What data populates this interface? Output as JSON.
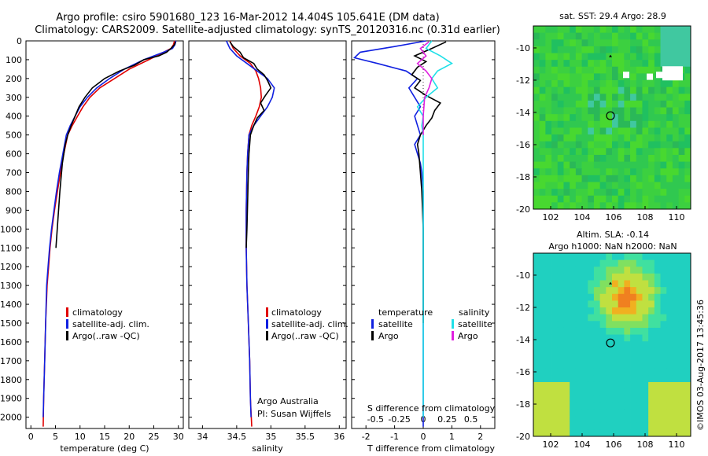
{
  "header": {
    "title_line1": "Argo profile: csiro 5901680_123 16-Mar-2012 14.404S 105.641E (DM data)",
    "title_line2": "Climatology: CARS2009. Satellite-adjusted climatology: synTS_20120316.nc (0.31d earlier)"
  },
  "colors": {
    "climatology": "#e00000",
    "satellite": "#1020e0",
    "argo": "#000000",
    "sat_salinity": "#20e0e8",
    "argo_salinity": "#e020e0"
  },
  "depth_ticks": [
    "0",
    "100",
    "200",
    "300",
    "400",
    "500",
    "600",
    "700",
    "800",
    "900",
    "1000",
    "1100",
    "1200",
    "1300",
    "1400",
    "1500",
    "1600",
    "1700",
    "1800",
    "1900",
    "2000"
  ],
  "chart_data": [
    {
      "type": "line",
      "title": "",
      "xlabel": "temperature (deg C)",
      "ylabel": "",
      "xlim": [
        -1,
        31
      ],
      "ylim": [
        2060,
        0
      ],
      "xticks": [
        "0",
        "5",
        "10",
        "15",
        "20",
        "25",
        "30"
      ],
      "legend": [
        "climatology",
        "satellite-adj. clim.",
        "Argo(..raw -QC)"
      ],
      "series": [
        {
          "name": "climatology",
          "color_key": "climatology",
          "x": [
            29.2,
            29.0,
            28.5,
            27,
            24,
            20,
            17,
            14,
            12,
            10.6,
            9.5,
            8.4,
            7.5,
            6.7,
            6.0,
            5.4,
            4.8,
            4.3,
            3.9,
            3.6,
            3.3,
            3.0,
            2.8,
            2.6,
            2.5
          ],
          "y": [
            0,
            20,
            40,
            60,
            100,
            150,
            200,
            250,
            300,
            350,
            400,
            450,
            500,
            600,
            700,
            800,
            900,
            1000,
            1100,
            1200,
            1300,
            1500,
            1700,
            1900,
            2050
          ]
        },
        {
          "name": "satellite-adj. clim.",
          "color_key": "satellite",
          "x": [
            29.5,
            29.3,
            28.8,
            27,
            23,
            19,
            16,
            13.4,
            11.5,
            10.0,
            9.0,
            8.0,
            7.2,
            6.5,
            5.8,
            5.2,
            4.7,
            4.2,
            3.8,
            3.5,
            3.2,
            3.0,
            2.8,
            2.6,
            2.5
          ],
          "y": [
            0,
            20,
            40,
            60,
            100,
            150,
            200,
            250,
            300,
            350,
            400,
            450,
            500,
            600,
            700,
            800,
            900,
            1000,
            1100,
            1200,
            1300,
            1500,
            1700,
            1900,
            2000
          ]
        },
        {
          "name": "Argo(..raw -QC)",
          "color_key": "argo",
          "x": [
            29.4,
            29.2,
            28.5,
            27.6,
            26,
            23,
            21,
            18,
            15,
            12.5,
            11,
            9.8,
            9.0,
            8.2,
            7.5,
            7.0,
            6.4,
            5.9,
            5.5,
            5.1
          ],
          "y": [
            5,
            20,
            40,
            60,
            80,
            100,
            130,
            160,
            200,
            250,
            300,
            350,
            400,
            450,
            500,
            550,
            650,
            800,
            950,
            1100
          ]
        }
      ]
    },
    {
      "type": "line",
      "title": "",
      "xlabel": "salinity",
      "ylabel": "",
      "xlim": [
        33.8,
        36.1
      ],
      "ylim": [
        2060,
        0
      ],
      "xticks": [
        "34",
        "34.5",
        "35",
        "35.5",
        "36"
      ],
      "legend": [
        "climatology",
        "satellite-adj. clim.",
        "Argo(..raw -QC)"
      ],
      "annotation": [
        "Argo Australia",
        "PI: Susan Wijffels"
      ],
      "series": [
        {
          "name": "climatology",
          "color_key": "climatology",
          "x": [
            34.4,
            34.45,
            34.55,
            34.7,
            34.78,
            34.82,
            34.85,
            34.86,
            34.83,
            34.78,
            34.72,
            34.68,
            34.66,
            34.65,
            34.64,
            34.64,
            34.65,
            34.67,
            34.69,
            34.7,
            34.72
          ],
          "y": [
            0,
            40,
            80,
            120,
            160,
            200,
            250,
            300,
            350,
            400,
            450,
            500,
            600,
            700,
            900,
            1100,
            1300,
            1500,
            1700,
            1900,
            2050
          ]
        },
        {
          "name": "satellite-adj. clim.",
          "color_key": "satellite",
          "x": [
            34.35,
            34.4,
            34.5,
            34.65,
            34.8,
            34.95,
            35.05,
            35.02,
            34.95,
            34.85,
            34.75,
            34.68,
            34.66,
            34.65,
            34.64,
            34.64,
            34.65,
            34.67,
            34.69,
            34.7,
            34.71
          ],
          "y": [
            0,
            40,
            80,
            120,
            160,
            200,
            250,
            300,
            350,
            400,
            450,
            500,
            600,
            700,
            900,
            1100,
            1300,
            1500,
            1700,
            1900,
            2000
          ]
        },
        {
          "name": "Argo(..raw -QC)",
          "color_key": "argo",
          "x": [
            34.4,
            34.45,
            34.55,
            34.6,
            34.75,
            34.8,
            34.9,
            34.95,
            35.0,
            34.92,
            34.85,
            34.9,
            34.8,
            34.75,
            34.7,
            34.68,
            34.67,
            34.66,
            34.65,
            34.64
          ],
          "y": [
            5,
            30,
            60,
            90,
            120,
            150,
            180,
            210,
            250,
            290,
            330,
            370,
            410,
            450,
            500,
            600,
            700,
            850,
            1000,
            1100
          ]
        }
      ]
    },
    {
      "type": "line",
      "title": "",
      "xlabel": "T difference from climatology",
      "xlabel_top": "S difference from climatology",
      "ylabel": "",
      "xlim": [
        -2.5,
        2.5
      ],
      "ylim": [
        2060,
        0
      ],
      "xticks": [
        "-2",
        "-1",
        "0",
        "1",
        "2"
      ],
      "xticks_s": [
        "-0.5",
        "-0.25",
        "0",
        "0.25",
        "0.5"
      ],
      "legend_headers": [
        "temperature",
        "salinity"
      ],
      "legend": [
        "satellite",
        "Argo",
        "satellite",
        "Argo"
      ],
      "series": [
        {
          "name": "temperature satellite",
          "color_key": "satellite",
          "x": [
            0.1,
            -1.0,
            -2.2,
            -2.4,
            -1.6,
            -0.6,
            -0.2,
            -0.5,
            -0.3,
            -0.1,
            -0.3,
            -0.2,
            -0.1,
            -0.3,
            -0.2,
            -0.1,
            -0.05,
            0,
            0,
            0,
            0
          ],
          "y": [
            0,
            30,
            60,
            90,
            120,
            160,
            200,
            250,
            300,
            350,
            400,
            450,
            500,
            550,
            600,
            650,
            700,
            800,
            1000,
            1500,
            2050
          ]
        },
        {
          "name": "temperature Argo",
          "color_key": "argo",
          "x": [
            0.8,
            0.3,
            -0.3,
            0.1,
            -0.2,
            -0.4,
            -0.1,
            -0.3,
            0.1,
            0.6,
            0.4,
            0.3,
            0.1,
            -0.1,
            -0.2,
            -0.15,
            -0.1,
            -0.05,
            0,
            0,
            0
          ],
          "y": [
            5,
            40,
            80,
            110,
            140,
            180,
            210,
            250,
            290,
            330,
            370,
            410,
            450,
            500,
            550,
            600,
            700,
            800,
            1000,
            1200,
            1500
          ]
        },
        {
          "name": "salinity satellite",
          "color_key": "sat_salinity",
          "x": [
            0.3,
            0.1,
            0.6,
            1.0,
            0.5,
            0.3,
            0.5,
            0.1,
            -0.2,
            0,
            -0.05,
            0,
            0,
            0,
            0,
            0,
            0,
            0
          ],
          "y": [
            0,
            40,
            80,
            120,
            160,
            200,
            250,
            300,
            350,
            400,
            450,
            500,
            600,
            700,
            900,
            1200,
            1600,
            2000
          ]
        },
        {
          "name": "salinity Argo",
          "color_key": "argo_salinity",
          "x": [
            0.2,
            -0.1,
            0.1,
            -0.2,
            0.1,
            0.3,
            0.2,
            0.05,
            0,
            0
          ],
          "y": [
            5,
            40,
            80,
            120,
            160,
            200,
            250,
            300,
            400,
            500
          ]
        }
      ]
    }
  ],
  "maps": {
    "sst": {
      "title": "sat. SST: 29.4  Argo: 28.9",
      "xticks": [
        "102",
        "104",
        "106",
        "108",
        "110"
      ],
      "yticks": [
        "-10",
        "-12",
        "-14",
        "-16",
        "-18",
        "-20"
      ]
    },
    "sla": {
      "title_line1": "Altim. SLA: -0.14",
      "title_line2": "Argo h1000: NaN h2000: NaN",
      "xticks": [
        "102",
        "104",
        "106",
        "108",
        "110"
      ],
      "yticks": [
        "-10",
        "-12",
        "-14",
        "-16",
        "-18",
        "-20"
      ]
    }
  },
  "footer": {
    "credit": "©IMOS 03-Aug-2017 13:45:36"
  }
}
